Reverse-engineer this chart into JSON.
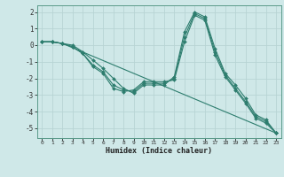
{
  "title": "",
  "xlabel": "Humidex (Indice chaleur)",
  "ylabel": "",
  "bg_color": "#cfe8e8",
  "grid_color": "#b8d4d4",
  "line_color": "#2d7d6e",
  "xlim": [
    -0.5,
    23.5
  ],
  "ylim": [
    -5.6,
    2.4
  ],
  "xticks": [
    0,
    1,
    2,
    3,
    4,
    5,
    6,
    7,
    8,
    9,
    10,
    11,
    12,
    13,
    14,
    15,
    16,
    17,
    18,
    19,
    20,
    21,
    22,
    23
  ],
  "yticks": [
    -5,
    -4,
    -3,
    -2,
    -1,
    0,
    1,
    2
  ],
  "lines": [
    {
      "x": [
        0,
        1,
        2,
        3,
        4,
        5,
        6,
        7,
        8,
        9,
        10,
        11,
        12,
        13,
        14,
        15,
        16,
        17,
        18,
        19,
        20,
        21,
        22,
        23
      ],
      "y": [
        0.2,
        0.2,
        0.1,
        -0.1,
        -0.5,
        -1.3,
        -1.7,
        -2.6,
        -2.8,
        -2.7,
        -2.2,
        -2.2,
        -2.2,
        -2.1,
        0.2,
        1.8,
        1.5,
        -0.6,
        -1.9,
        -2.7,
        -3.5,
        -4.4,
        -4.7,
        -5.3
      ]
    },
    {
      "x": [
        0,
        1,
        2,
        3,
        4,
        5,
        6,
        7,
        8,
        9,
        10,
        11,
        12,
        13,
        14,
        15,
        16,
        17,
        18,
        19,
        20,
        21,
        22,
        23
      ],
      "y": [
        0.2,
        0.2,
        0.1,
        -0.1,
        -0.5,
        -1.2,
        -1.6,
        -2.4,
        -2.7,
        -2.8,
        -2.3,
        -2.3,
        -2.3,
        -2.0,
        0.5,
        1.9,
        1.6,
        -0.4,
        -1.8,
        -2.6,
        -3.4,
        -4.3,
        -4.6,
        -5.3
      ]
    },
    {
      "x": [
        0,
        1,
        2,
        3,
        4,
        5,
        6,
        7,
        8,
        9,
        10,
        11,
        12,
        13,
        14,
        15,
        16,
        17,
        18,
        19,
        20,
        21,
        22,
        23
      ],
      "y": [
        0.2,
        0.2,
        0.1,
        0.0,
        -0.4,
        -0.9,
        -1.4,
        -2.0,
        -2.6,
        -2.9,
        -2.4,
        -2.4,
        -2.4,
        -1.9,
        0.8,
        2.0,
        1.7,
        -0.2,
        -1.7,
        -2.4,
        -3.2,
        -4.2,
        -4.5,
        -5.3
      ]
    },
    {
      "x": [
        0,
        1,
        2,
        23
      ],
      "y": [
        0.2,
        0.2,
        0.1,
        -5.3
      ]
    }
  ]
}
